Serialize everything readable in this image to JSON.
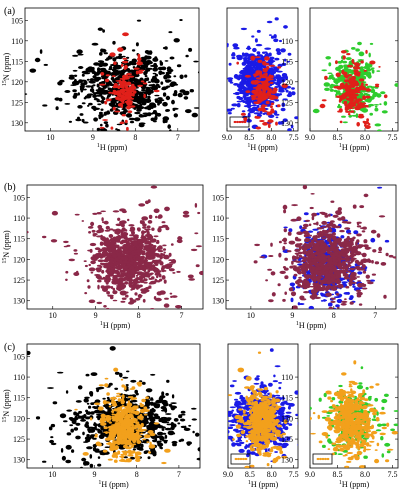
{
  "colors": {
    "black": "#000000",
    "red": "#e0201a",
    "blue": "#1a1ae6",
    "green": "#2ecc2e",
    "maroon": "#8a2848",
    "orange": "#f2a01c"
  },
  "rows": [
    {
      "label": "(a)",
      "panels": [
        {
          "type": "full",
          "xlabel": "1H (ppm)",
          "ylabel": "15N (ppm)",
          "layers": [
            {
              "color": "black",
              "count": 640,
              "spread": 1.0,
              "cx": 8.2,
              "cy": 121
            },
            {
              "color": "red",
              "count": 120,
              "spread": 0.28,
              "cx": 8.25,
              "cy": 122
            }
          ]
        },
        {
          "type": "narrow",
          "xlabel": "1H (ppm)",
          "layers": [
            {
              "color": "blue",
              "count": 620,
              "spread": 0.45,
              "cx": 8.25,
              "cy": 120
            },
            {
              "color": "red",
              "count": 130,
              "spread": 0.22,
              "cx": 8.2,
              "cy": 122
            }
          ],
          "inset": true
        },
        {
          "type": "narrow",
          "xlabel": "1H (ppm)",
          "layers": [
            {
              "color": "green",
              "count": 320,
              "spread": 0.35,
              "cx": 8.2,
              "cy": 121
            },
            {
              "color": "red",
              "count": 160,
              "spread": 0.22,
              "cx": 8.2,
              "cy": 122
            }
          ]
        }
      ]
    },
    {
      "label": "(b)",
      "panels": [
        {
          "type": "full",
          "xlabel": "1H (ppm)",
          "ylabel": "15N (ppm)",
          "layers": [
            {
              "color": "maroon",
              "count": 900,
              "spread": 0.7,
              "cx": 8.2,
              "cy": 120
            }
          ]
        },
        {
          "type": "full",
          "xlabel": "1H (ppm)",
          "layers": [
            {
              "color": "blue",
              "count": 420,
              "spread": 0.55,
              "cx": 8.2,
              "cy": 121
            },
            {
              "color": "maroon",
              "count": 760,
              "spread": 0.7,
              "cx": 8.2,
              "cy": 120
            }
          ]
        }
      ]
    },
    {
      "label": "(c)",
      "panels": [
        {
          "type": "full",
          "xlabel": "1H (ppm)",
          "ylabel": "15N (ppm)",
          "layers": [
            {
              "color": "black",
              "count": 620,
              "spread": 1.0,
              "cx": 8.2,
              "cy": 121
            },
            {
              "color": "orange",
              "count": 380,
              "spread": 0.4,
              "cx": 8.3,
              "cy": 122
            }
          ]
        },
        {
          "type": "narrow",
          "xlabel": "1H (ppm)",
          "layers": [
            {
              "color": "blue",
              "count": 620,
              "spread": 0.45,
              "cx": 8.25,
              "cy": 120
            },
            {
              "color": "orange",
              "count": 420,
              "spread": 0.3,
              "cx": 8.25,
              "cy": 121
            }
          ],
          "inset": true
        },
        {
          "type": "narrow",
          "xlabel": "1H (ppm)",
          "layers": [
            {
              "color": "green",
              "count": 260,
              "spread": 0.35,
              "cx": 8.2,
              "cy": 121
            },
            {
              "color": "orange",
              "count": 420,
              "spread": 0.3,
              "cx": 8.25,
              "cy": 121
            }
          ],
          "inset": true
        }
      ]
    }
  ],
  "chart_data": {
    "type": "scatter",
    "description_type": "2D NMR spectra (1H-15N HSQC overlays)",
    "x_axis": {
      "label": "1H (ppm)",
      "reversed": true
    },
    "y_axis": {
      "label": "15N (ppm)",
      "reversed": true,
      "ticks": [
        105,
        110,
        115,
        120,
        125,
        130
      ]
    },
    "full_x_ticks": [
      10,
      9,
      8,
      7
    ],
    "full_xlim": [
      10.6,
      6.5
    ],
    "narrow_x_ticks": [
      9.0,
      8.5,
      8.0,
      7.5
    ],
    "narrow_xlim": [
      9.0,
      7.4
    ],
    "ylim": [
      102,
      132
    ],
    "narrow_y_ticks": [
      110,
      115,
      120,
      125,
      130
    ],
    "full_y_ticks": [
      105,
      110,
      115,
      120,
      125,
      130
    ]
  }
}
